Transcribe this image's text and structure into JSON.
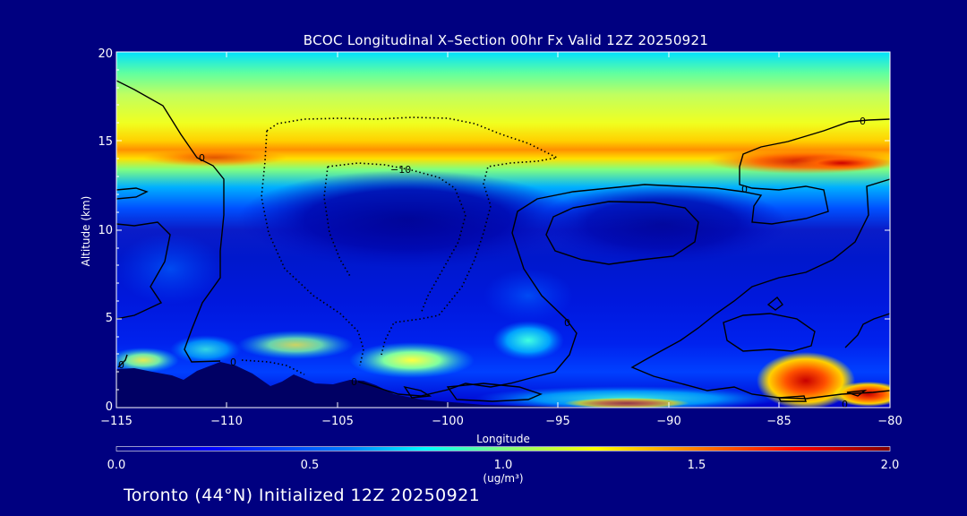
{
  "chart_data": {
    "type": "heatmap",
    "title": "BCOC Longitudinal X–Section 00hr  Fx Valid 12Z 20250921",
    "xlabel": "Longitude",
    "ylabel": "Altitude (km)",
    "xlim": [
      -115,
      -80
    ],
    "ylim": [
      0,
      20
    ],
    "x_ticks": [
      "−115",
      "−110",
      "−105",
      "−100",
      "−95",
      "−90",
      "−85",
      "−80"
    ],
    "y_ticks": [
      "0",
      "5",
      "10",
      "15",
      "20"
    ],
    "colorbar": {
      "range": [
        0.0,
        2.0
      ],
      "ticks": [
        "0.0",
        "0.5",
        "1.0",
        "1.5",
        "2.0"
      ],
      "unit_label": "(ug/m³)"
    },
    "contour_labels": [
      "0",
      "−10",
      "0",
      "0",
      "0",
      "0",
      "0",
      "0",
      "0"
    ],
    "features": [
      {
        "name": "upper maximum",
        "altitude_km": 14.5,
        "value": 1.5
      },
      {
        "name": "eastern upper maximum",
        "longitude": -82.5,
        "altitude_km": 13.8,
        "value": 1.8
      },
      {
        "name": "surface maximum",
        "longitude": -83.5,
        "altitude_km": 1.5,
        "value": 1.9
      },
      {
        "name": "mid-level maximum",
        "longitude": -101.5,
        "altitude_km": 2.6,
        "value": 1.1
      },
      {
        "name": "upper-troposphere minimum",
        "altitude_km": 10.5,
        "value": 0.1
      }
    ]
  },
  "footer": "Toronto (44°N) Initialized 12Z 20250921",
  "colors": {
    "background": "#000080",
    "colormap": [
      "#000080",
      "#0000ff",
      "#0080ff",
      "#00ffff",
      "#80ff80",
      "#ffff00",
      "#ff8000",
      "#ff0000",
      "#800000"
    ],
    "terrain": "#000064"
  }
}
